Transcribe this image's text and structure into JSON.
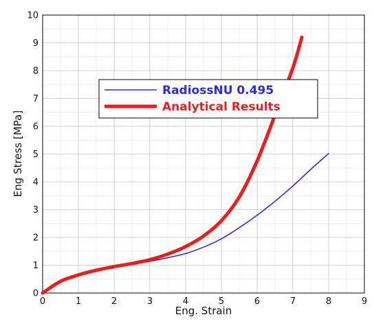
{
  "chart_data": {
    "type": "line",
    "title": "",
    "xlabel": "Eng. Strain",
    "ylabel": "Eng Stress [MPa]",
    "xlim": [
      0,
      9
    ],
    "ylim": [
      0,
      10
    ],
    "x_ticks": [
      "0",
      "1",
      "2",
      "3",
      "4",
      "5",
      "6",
      "7",
      "8",
      "9"
    ],
    "y_ticks": [
      "0",
      "1",
      "2",
      "3",
      "4",
      "5",
      "6",
      "7",
      "8",
      "9",
      "10"
    ],
    "grid": true,
    "minor_grid": true,
    "legend_position": "upper-center",
    "series": [
      {
        "name": "RadiossNU 0.495",
        "color": "#2a2aee",
        "x": [
          0,
          0.5,
          1.0,
          1.5,
          2.0,
          2.5,
          3.0,
          3.5,
          4.0,
          4.5,
          5.0,
          5.5,
          6.0,
          6.5,
          7.0,
          7.5,
          8.0
        ],
        "y": [
          0,
          0.42,
          0.65,
          0.82,
          0.93,
          1.03,
          1.14,
          1.27,
          1.42,
          1.65,
          1.95,
          2.35,
          2.8,
          3.3,
          3.85,
          4.45,
          5.02
        ]
      },
      {
        "name": "Analytical Results",
        "color": "#ee1c1c",
        "x": [
          0,
          0.5,
          1.0,
          1.5,
          2.0,
          2.5,
          3.0,
          3.5,
          4.0,
          4.5,
          5.0,
          5.5,
          6.0,
          6.5,
          7.0,
          7.25
        ],
        "y": [
          0,
          0.42,
          0.65,
          0.82,
          0.95,
          1.06,
          1.2,
          1.4,
          1.67,
          2.05,
          2.6,
          3.45,
          4.75,
          6.4,
          8.1,
          9.2
        ]
      }
    ]
  }
}
